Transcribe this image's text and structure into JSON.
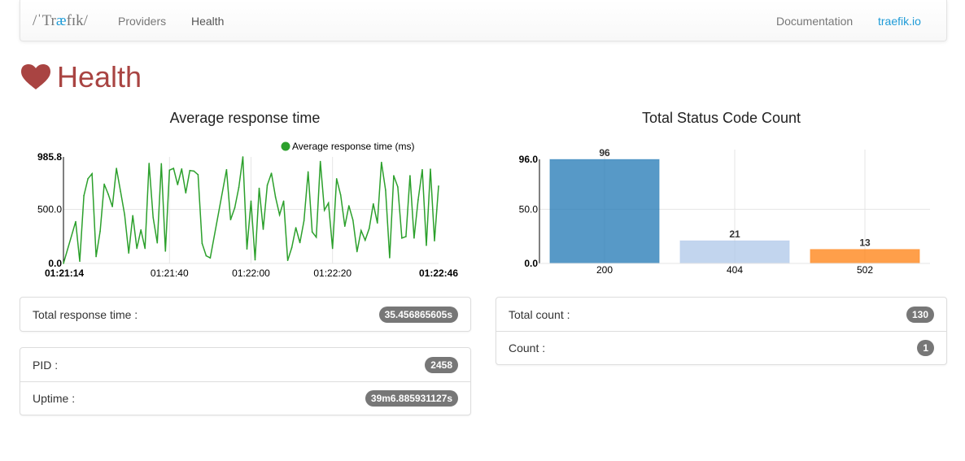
{
  "navbar": {
    "brand": {
      "pre": "/ˈTr",
      "ae": "æ",
      "post": "fɪk/"
    },
    "links": [
      "Providers",
      "Health"
    ],
    "right_links": [
      "Documentation",
      "traefik.io"
    ],
    "accent": "#1e9bd7"
  },
  "page": {
    "title": "Health",
    "icon": "heart-icon",
    "title_color": "#a94442"
  },
  "chart_data": [
    {
      "type": "line",
      "title": "Average response time",
      "series": [
        {
          "name": "Average response time (ms)",
          "color": "#2ca02c",
          "x": [
            "01:21:14",
            "01:21:17",
            "01:21:18",
            "01:21:19",
            "01:21:20",
            "01:21:21",
            "01:21:22",
            "01:21:23",
            "01:21:24",
            "01:21:25",
            "01:21:26",
            "01:21:27",
            "01:21:28",
            "01:21:29",
            "01:21:30",
            "01:21:31",
            "01:21:32",
            "01:21:33",
            "01:21:34",
            "01:21:35",
            "01:21:36",
            "01:21:37",
            "01:21:38",
            "01:21:39",
            "01:21:40",
            "01:21:41",
            "01:21:42",
            "01:21:43",
            "01:21:44",
            "01:21:45",
            "01:21:46",
            "01:21:47",
            "01:21:48",
            "01:21:49",
            "01:21:50",
            "01:21:54",
            "01:21:55",
            "01:21:56",
            "01:21:57",
            "01:21:58",
            "01:21:59",
            "01:22:00",
            "01:22:01",
            "01:22:02",
            "01:22:03",
            "01:22:04",
            "01:22:05",
            "01:22:06",
            "01:22:07",
            "01:22:08",
            "01:22:09",
            "01:22:10",
            "01:22:11",
            "01:22:12",
            "01:22:13",
            "01:22:14",
            "01:22:15",
            "01:22:16",
            "01:22:17",
            "01:22:18",
            "01:22:19",
            "01:22:20",
            "01:22:21",
            "01:22:22",
            "01:22:23",
            "01:22:24",
            "01:22:25",
            "01:22:26",
            "01:22:27",
            "01:22:28",
            "01:22:29",
            "01:22:30",
            "01:22:31",
            "01:22:32",
            "01:22:33",
            "01:22:34",
            "01:22:35",
            "01:22:36",
            "01:22:37",
            "01:22:38",
            "01:22:39",
            "01:22:40",
            "01:22:41",
            "01:22:42",
            "01:22:43",
            "01:22:44",
            "01:22:45",
            "01:22:46"
          ],
          "y": [
            0,
            387,
            20,
            627,
            784,
            830,
            63,
            299,
            734,
            640,
            526,
            880,
            665,
            450,
            96,
            443,
            139,
            311,
            139,
            926,
            425,
            190,
            923,
            114,
            863,
            880,
            729,
            875,
            653,
            860,
            855,
            822,
            185,
            71,
            51,
            868,
            405,
            514,
            703,
            986,
            134,
            577,
            33,
            696,
            316,
            724,
            835,
            615,
            450,
            577,
            28,
            147,
            331,
            192,
            395,
            848,
            291,
            243,
            944,
            493,
            559,
            139,
            784,
            633,
            344,
            534,
            400,
            109,
            304,
            215,
            324,
            552,
            374,
            936,
            678,
            53,
            812,
            708,
            235,
            248,
            812,
            235,
            589,
            868,
            167,
            873,
            210,
            716
          ]
        }
      ],
      "x_ticks": [
        "01:21:14",
        "01:21:40",
        "01:22:00",
        "01:22:20",
        "01:22:46"
      ],
      "y_ticks": [
        "0.0",
        "500.0",
        "985.8"
      ],
      "ylim": [
        0,
        985.8
      ],
      "grid": true,
      "legend": "top-right"
    },
    {
      "type": "bar",
      "title": "Total Status Code Count",
      "categories": [
        "200",
        "404",
        "502"
      ],
      "values": [
        96,
        21,
        13
      ],
      "colors": [
        "#1f77b4",
        "#aec7e8",
        "#ff7f0e"
      ],
      "y_ticks": [
        "0.0",
        "50.0",
        "96.0"
      ],
      "ylim": [
        0,
        96
      ],
      "grid": true
    }
  ],
  "left_panels": {
    "total_response_time": {
      "label": "Total response time :",
      "value": "35.456865605s"
    },
    "pid": {
      "label": "PID :",
      "value": "2458"
    },
    "uptime": {
      "label": "Uptime :",
      "value": "39m6.885931127s"
    }
  },
  "right_panel": {
    "total_count": {
      "label": "Total count :",
      "value": "130"
    },
    "count": {
      "label": "Count :",
      "value": "1"
    }
  }
}
